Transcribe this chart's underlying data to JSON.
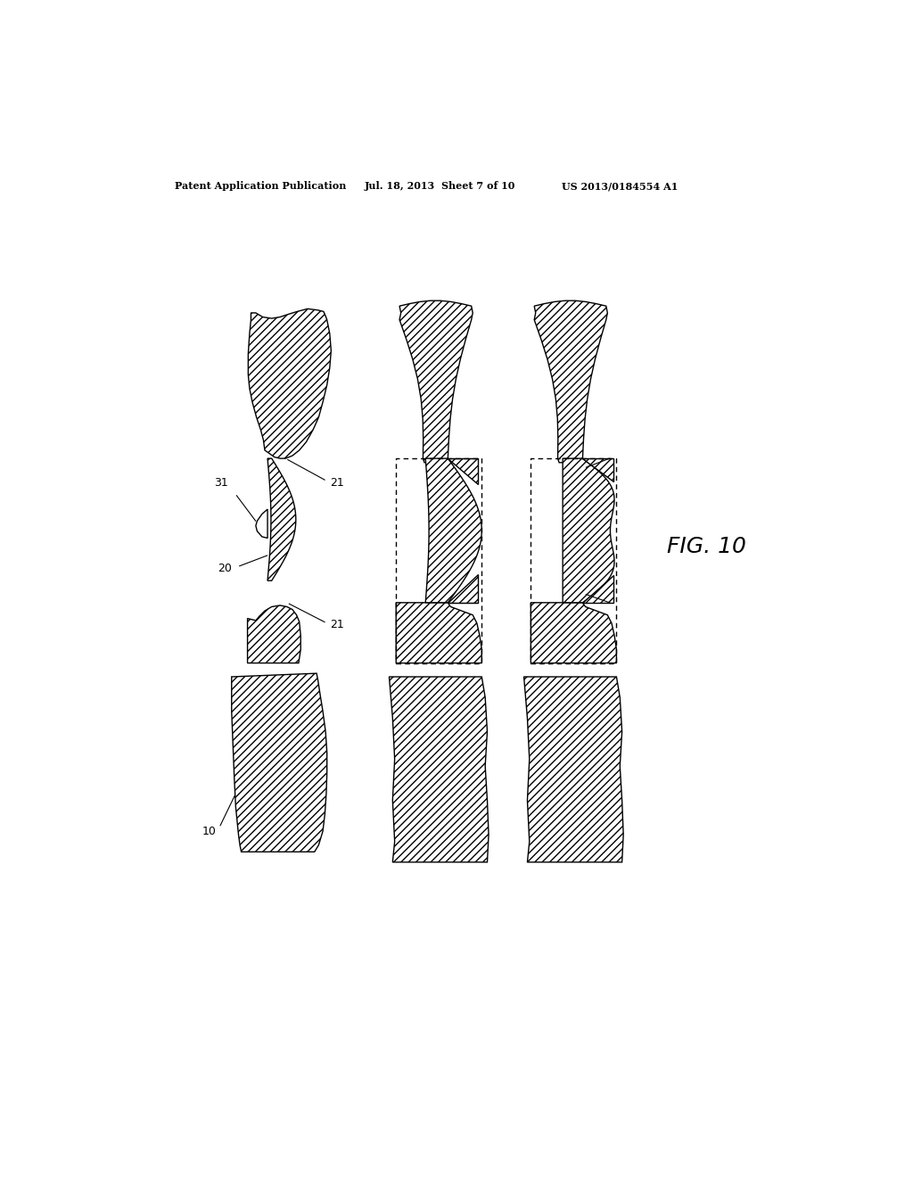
{
  "title_left": "Patent Application Publication",
  "title_mid": "Jul. 18, 2013  Sheet 7 of 10",
  "title_right": "US 2013/0184554 A1",
  "fig_label": "FIG. 10",
  "label_10": "10",
  "label_20": "20",
  "label_21a": "21",
  "label_21b": "21",
  "label_31": "31",
  "bg_color": "#ffffff",
  "hatch_pattern": "////",
  "line_color": "#000000",
  "line_width": 1.0
}
